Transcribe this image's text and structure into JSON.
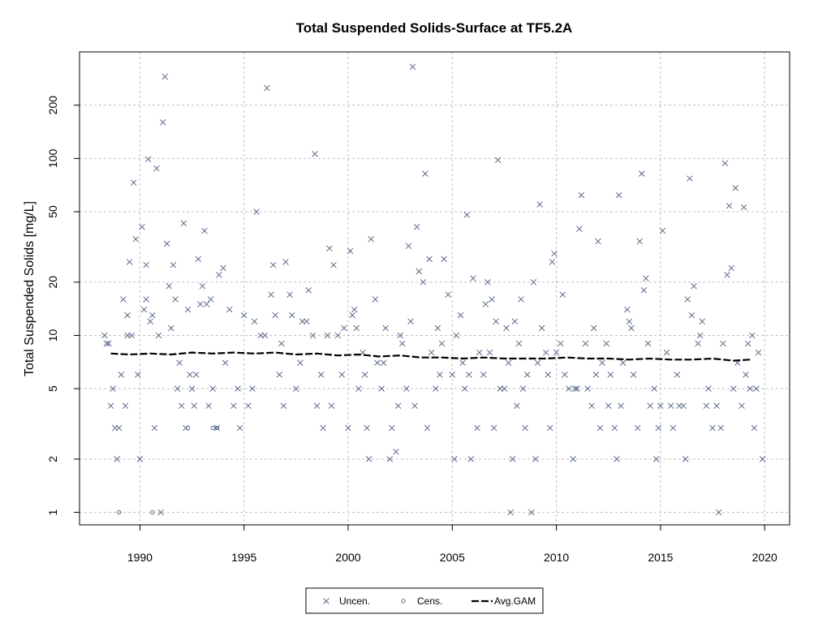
{
  "chart_data": {
    "type": "scatter",
    "title": "Total Suspended Solids-Surface at TF5.2A",
    "xlabel": "",
    "ylabel": "Total Suspended Solids [mg/L]",
    "y_scale": "log",
    "xlim": [
      1987.1,
      2021.2
    ],
    "ylim": [
      0.85,
      400
    ],
    "x_ticks": [
      1990,
      1995,
      2000,
      2005,
      2010,
      2015,
      2020
    ],
    "x_tick_labels": [
      "1990",
      "1995",
      "2000",
      "2005",
      "2010",
      "2015",
      "2020"
    ],
    "y_ticks": [
      1,
      2,
      5,
      10,
      20,
      50,
      100,
      200
    ],
    "y_tick_labels": [
      "1",
      "2",
      "5",
      "10",
      "20",
      "50",
      "100",
      "200"
    ],
    "grid": true,
    "legend_position": "bottom-center",
    "legend": [
      {
        "label": "Uncen.",
        "marker": "x"
      },
      {
        "label": "Cens.",
        "marker": "circle"
      },
      {
        "label": "Avg.GAM",
        "marker": "dashed-line"
      }
    ],
    "colors": {
      "points": "#5a6b8c",
      "gam": "#000000",
      "grid": "#c0c0c0",
      "axis": "#000000"
    },
    "series": [
      {
        "name": "Uncen.",
        "points": [
          [
            1988.3,
            10
          ],
          [
            1988.4,
            9
          ],
          [
            1988.5,
            9
          ],
          [
            1988.6,
            4
          ],
          [
            1988.7,
            5
          ],
          [
            1988.8,
            3
          ],
          [
            1988.9,
            2
          ],
          [
            1989.0,
            3
          ],
          [
            1989.1,
            6
          ],
          [
            1989.2,
            16
          ],
          [
            1989.3,
            4
          ],
          [
            1989.4,
            10
          ],
          [
            1989.4,
            13
          ],
          [
            1989.5,
            26
          ],
          [
            1989.6,
            10
          ],
          [
            1989.7,
            73
          ],
          [
            1989.8,
            35
          ],
          [
            1989.9,
            6
          ],
          [
            1990.0,
            2
          ],
          [
            1990.1,
            41
          ],
          [
            1990.2,
            14
          ],
          [
            1990.3,
            25
          ],
          [
            1990.3,
            16
          ],
          [
            1990.4,
            99
          ],
          [
            1990.5,
            12
          ],
          [
            1990.6,
            13
          ],
          [
            1990.7,
            3
          ],
          [
            1990.8,
            88
          ],
          [
            1990.9,
            10
          ],
          [
            1991.0,
            1
          ],
          [
            1991.1,
            160
          ],
          [
            1991.2,
            290
          ],
          [
            1991.3,
            33
          ],
          [
            1991.4,
            19
          ],
          [
            1991.5,
            11
          ],
          [
            1991.6,
            25
          ],
          [
            1991.7,
            16
          ],
          [
            1991.8,
            5
          ],
          [
            1991.9,
            7
          ],
          [
            1992.0,
            4
          ],
          [
            1992.1,
            43
          ],
          [
            1992.2,
            3
          ],
          [
            1992.3,
            14
          ],
          [
            1992.4,
            6
          ],
          [
            1992.5,
            5
          ],
          [
            1992.6,
            4
          ],
          [
            1992.7,
            6
          ],
          [
            1992.8,
            27
          ],
          [
            1992.9,
            15
          ],
          [
            1993.0,
            19
          ],
          [
            1993.1,
            39
          ],
          [
            1993.2,
            15
          ],
          [
            1993.3,
            4
          ],
          [
            1993.4,
            16
          ],
          [
            1993.5,
            5
          ],
          [
            1993.7,
            3
          ],
          [
            1993.8,
            22
          ],
          [
            1994.0,
            24
          ],
          [
            1994.1,
            7
          ],
          [
            1994.3,
            14
          ],
          [
            1994.5,
            4
          ],
          [
            1994.7,
            5
          ],
          [
            1994.8,
            3
          ],
          [
            1995.0,
            13
          ],
          [
            1995.2,
            4
          ],
          [
            1995.4,
            5
          ],
          [
            1995.5,
            12
          ],
          [
            1995.6,
            50
          ],
          [
            1995.8,
            10
          ],
          [
            1996.0,
            10
          ],
          [
            1996.1,
            250
          ],
          [
            1996.3,
            17
          ],
          [
            1996.4,
            25
          ],
          [
            1996.5,
            13
          ],
          [
            1996.7,
            6
          ],
          [
            1996.8,
            9
          ],
          [
            1996.9,
            4
          ],
          [
            1997.0,
            26
          ],
          [
            1997.2,
            17
          ],
          [
            1997.3,
            13
          ],
          [
            1997.5,
            5
          ],
          [
            1997.7,
            7
          ],
          [
            1997.8,
            12
          ],
          [
            1998.0,
            12
          ],
          [
            1998.1,
            18
          ],
          [
            1998.3,
            10
          ],
          [
            1998.4,
            106
          ],
          [
            1998.5,
            4
          ],
          [
            1998.7,
            6
          ],
          [
            1998.8,
            3
          ],
          [
            1999.0,
            10
          ],
          [
            1999.1,
            31
          ],
          [
            1999.2,
            4
          ],
          [
            1999.3,
            25
          ],
          [
            1999.5,
            10
          ],
          [
            1999.7,
            6
          ],
          [
            1999.8,
            11
          ],
          [
            2000.0,
            3
          ],
          [
            2000.1,
            30
          ],
          [
            2000.2,
            13
          ],
          [
            2000.3,
            14
          ],
          [
            2000.4,
            11
          ],
          [
            2000.5,
            5
          ],
          [
            2000.7,
            8
          ],
          [
            2000.8,
            6
          ],
          [
            2000.9,
            3
          ],
          [
            2001.0,
            2
          ],
          [
            2001.1,
            35
          ],
          [
            2001.3,
            16
          ],
          [
            2001.4,
            7
          ],
          [
            2001.6,
            5
          ],
          [
            2001.7,
            7
          ],
          [
            2001.8,
            11
          ],
          [
            2002.0,
            2
          ],
          [
            2002.1,
            3
          ],
          [
            2002.3,
            2.2
          ],
          [
            2002.4,
            4
          ],
          [
            2002.5,
            10
          ],
          [
            2002.6,
            9
          ],
          [
            2002.8,
            5
          ],
          [
            2002.9,
            32
          ],
          [
            2003.0,
            12
          ],
          [
            2003.1,
            330
          ],
          [
            2003.2,
            4
          ],
          [
            2003.3,
            41
          ],
          [
            2003.4,
            23
          ],
          [
            2003.6,
            20
          ],
          [
            2003.7,
            82
          ],
          [
            2003.8,
            3
          ],
          [
            2003.9,
            27
          ],
          [
            2004.0,
            8
          ],
          [
            2004.2,
            5
          ],
          [
            2004.3,
            11
          ],
          [
            2004.4,
            6
          ],
          [
            2004.5,
            9
          ],
          [
            2004.6,
            27
          ],
          [
            2004.8,
            17
          ],
          [
            2005.0,
            6
          ],
          [
            2005.1,
            2
          ],
          [
            2005.2,
            10
          ],
          [
            2005.4,
            13
          ],
          [
            2005.5,
            7
          ],
          [
            2005.6,
            5
          ],
          [
            2005.7,
            48
          ],
          [
            2005.8,
            6
          ],
          [
            2005.9,
            2
          ],
          [
            2006.0,
            21
          ],
          [
            2006.2,
            3
          ],
          [
            2006.3,
            8
          ],
          [
            2006.5,
            6
          ],
          [
            2006.6,
            15
          ],
          [
            2006.7,
            20
          ],
          [
            2006.8,
            8
          ],
          [
            2006.9,
            16
          ],
          [
            2007.0,
            3
          ],
          [
            2007.1,
            12
          ],
          [
            2007.2,
            98
          ],
          [
            2007.3,
            5
          ],
          [
            2007.5,
            5
          ],
          [
            2007.6,
            11
          ],
          [
            2007.7,
            7
          ],
          [
            2007.8,
            1
          ],
          [
            2007.9,
            2
          ],
          [
            2008.0,
            12
          ],
          [
            2008.1,
            4
          ],
          [
            2008.2,
            9
          ],
          [
            2008.3,
            16
          ],
          [
            2008.4,
            5
          ],
          [
            2008.5,
            3
          ],
          [
            2008.6,
            6
          ],
          [
            2008.8,
            1
          ],
          [
            2008.9,
            20
          ],
          [
            2009.0,
            2
          ],
          [
            2009.1,
            7
          ],
          [
            2009.2,
            55
          ],
          [
            2009.3,
            11
          ],
          [
            2009.5,
            8
          ],
          [
            2009.6,
            6
          ],
          [
            2009.7,
            3
          ],
          [
            2009.8,
            26
          ],
          [
            2009.9,
            29
          ],
          [
            2010.0,
            8
          ],
          [
            2010.2,
            9
          ],
          [
            2010.3,
            17
          ],
          [
            2010.4,
            6
          ],
          [
            2010.6,
            5
          ],
          [
            2010.8,
            2
          ],
          [
            2010.9,
            5
          ],
          [
            2011.0,
            5
          ],
          [
            2011.1,
            40
          ],
          [
            2011.2,
            62
          ],
          [
            2011.4,
            9
          ],
          [
            2011.5,
            5
          ],
          [
            2011.7,
            4
          ],
          [
            2011.8,
            11
          ],
          [
            2011.9,
            6
          ],
          [
            2012.0,
            34
          ],
          [
            2012.1,
            3
          ],
          [
            2012.2,
            7
          ],
          [
            2012.4,
            9
          ],
          [
            2012.5,
            4
          ],
          [
            2012.6,
            6
          ],
          [
            2012.8,
            3
          ],
          [
            2012.9,
            2
          ],
          [
            2013.0,
            62
          ],
          [
            2013.1,
            4
          ],
          [
            2013.2,
            7
          ],
          [
            2013.4,
            14
          ],
          [
            2013.5,
            12
          ],
          [
            2013.6,
            11
          ],
          [
            2013.7,
            6
          ],
          [
            2013.9,
            3
          ],
          [
            2014.0,
            34
          ],
          [
            2014.1,
            82
          ],
          [
            2014.2,
            18
          ],
          [
            2014.3,
            21
          ],
          [
            2014.4,
            9
          ],
          [
            2014.5,
            4
          ],
          [
            2014.7,
            5
          ],
          [
            2014.8,
            2
          ],
          [
            2014.9,
            3
          ],
          [
            2015.0,
            4
          ],
          [
            2015.1,
            39
          ],
          [
            2015.3,
            8
          ],
          [
            2015.5,
            4
          ],
          [
            2015.6,
            3
          ],
          [
            2015.8,
            6
          ],
          [
            2015.9,
            4
          ],
          [
            2016.1,
            4
          ],
          [
            2016.2,
            2
          ],
          [
            2016.3,
            16
          ],
          [
            2016.4,
            77
          ],
          [
            2016.5,
            13
          ],
          [
            2016.6,
            19
          ],
          [
            2016.8,
            9
          ],
          [
            2016.9,
            10
          ],
          [
            2017.0,
            12
          ],
          [
            2017.2,
            4
          ],
          [
            2017.3,
            5
          ],
          [
            2017.5,
            3
          ],
          [
            2017.7,
            4
          ],
          [
            2017.8,
            1
          ],
          [
            2017.9,
            3
          ],
          [
            2018.0,
            9
          ],
          [
            2018.1,
            94
          ],
          [
            2018.2,
            22
          ],
          [
            2018.3,
            54
          ],
          [
            2018.4,
            24
          ],
          [
            2018.5,
            5
          ],
          [
            2018.6,
            68
          ],
          [
            2018.7,
            7
          ],
          [
            2018.9,
            4
          ],
          [
            2019.0,
            53
          ],
          [
            2019.1,
            6
          ],
          [
            2019.2,
            9
          ],
          [
            2019.3,
            5
          ],
          [
            2019.4,
            10
          ],
          [
            2019.5,
            3
          ],
          [
            2019.6,
            5
          ],
          [
            2019.7,
            8
          ],
          [
            2019.9,
            2
          ]
        ]
      },
      {
        "name": "Cens.",
        "points": [
          [
            1989.0,
            1
          ],
          [
            1990.6,
            1
          ],
          [
            1992.3,
            3
          ],
          [
            1993.5,
            3
          ],
          [
            1993.7,
            3
          ]
        ]
      },
      {
        "name": "Avg.GAM",
        "points": [
          [
            1988.6,
            7.9
          ],
          [
            1989.5,
            7.8
          ],
          [
            1990.5,
            7.9
          ],
          [
            1991.5,
            7.8
          ],
          [
            1992.5,
            8.0
          ],
          [
            1993.5,
            7.9
          ],
          [
            1994.5,
            8.0
          ],
          [
            1995.5,
            7.9
          ],
          [
            1996.5,
            8.0
          ],
          [
            1997.5,
            7.8
          ],
          [
            1998.5,
            7.9
          ],
          [
            1999.5,
            7.7
          ],
          [
            2000.5,
            7.8
          ],
          [
            2001.5,
            7.6
          ],
          [
            2002.5,
            7.7
          ],
          [
            2003.5,
            7.5
          ],
          [
            2004.5,
            7.5
          ],
          [
            2005.5,
            7.4
          ],
          [
            2006.5,
            7.5
          ],
          [
            2007.5,
            7.4
          ],
          [
            2008.5,
            7.4
          ],
          [
            2009.5,
            7.4
          ],
          [
            2010.5,
            7.5
          ],
          [
            2011.5,
            7.4
          ],
          [
            2012.5,
            7.4
          ],
          [
            2013.5,
            7.3
          ],
          [
            2014.5,
            7.4
          ],
          [
            2015.5,
            7.3
          ],
          [
            2016.5,
            7.3
          ],
          [
            2017.5,
            7.4
          ],
          [
            2018.5,
            7.2
          ],
          [
            2019.3,
            7.3
          ]
        ]
      }
    ]
  }
}
